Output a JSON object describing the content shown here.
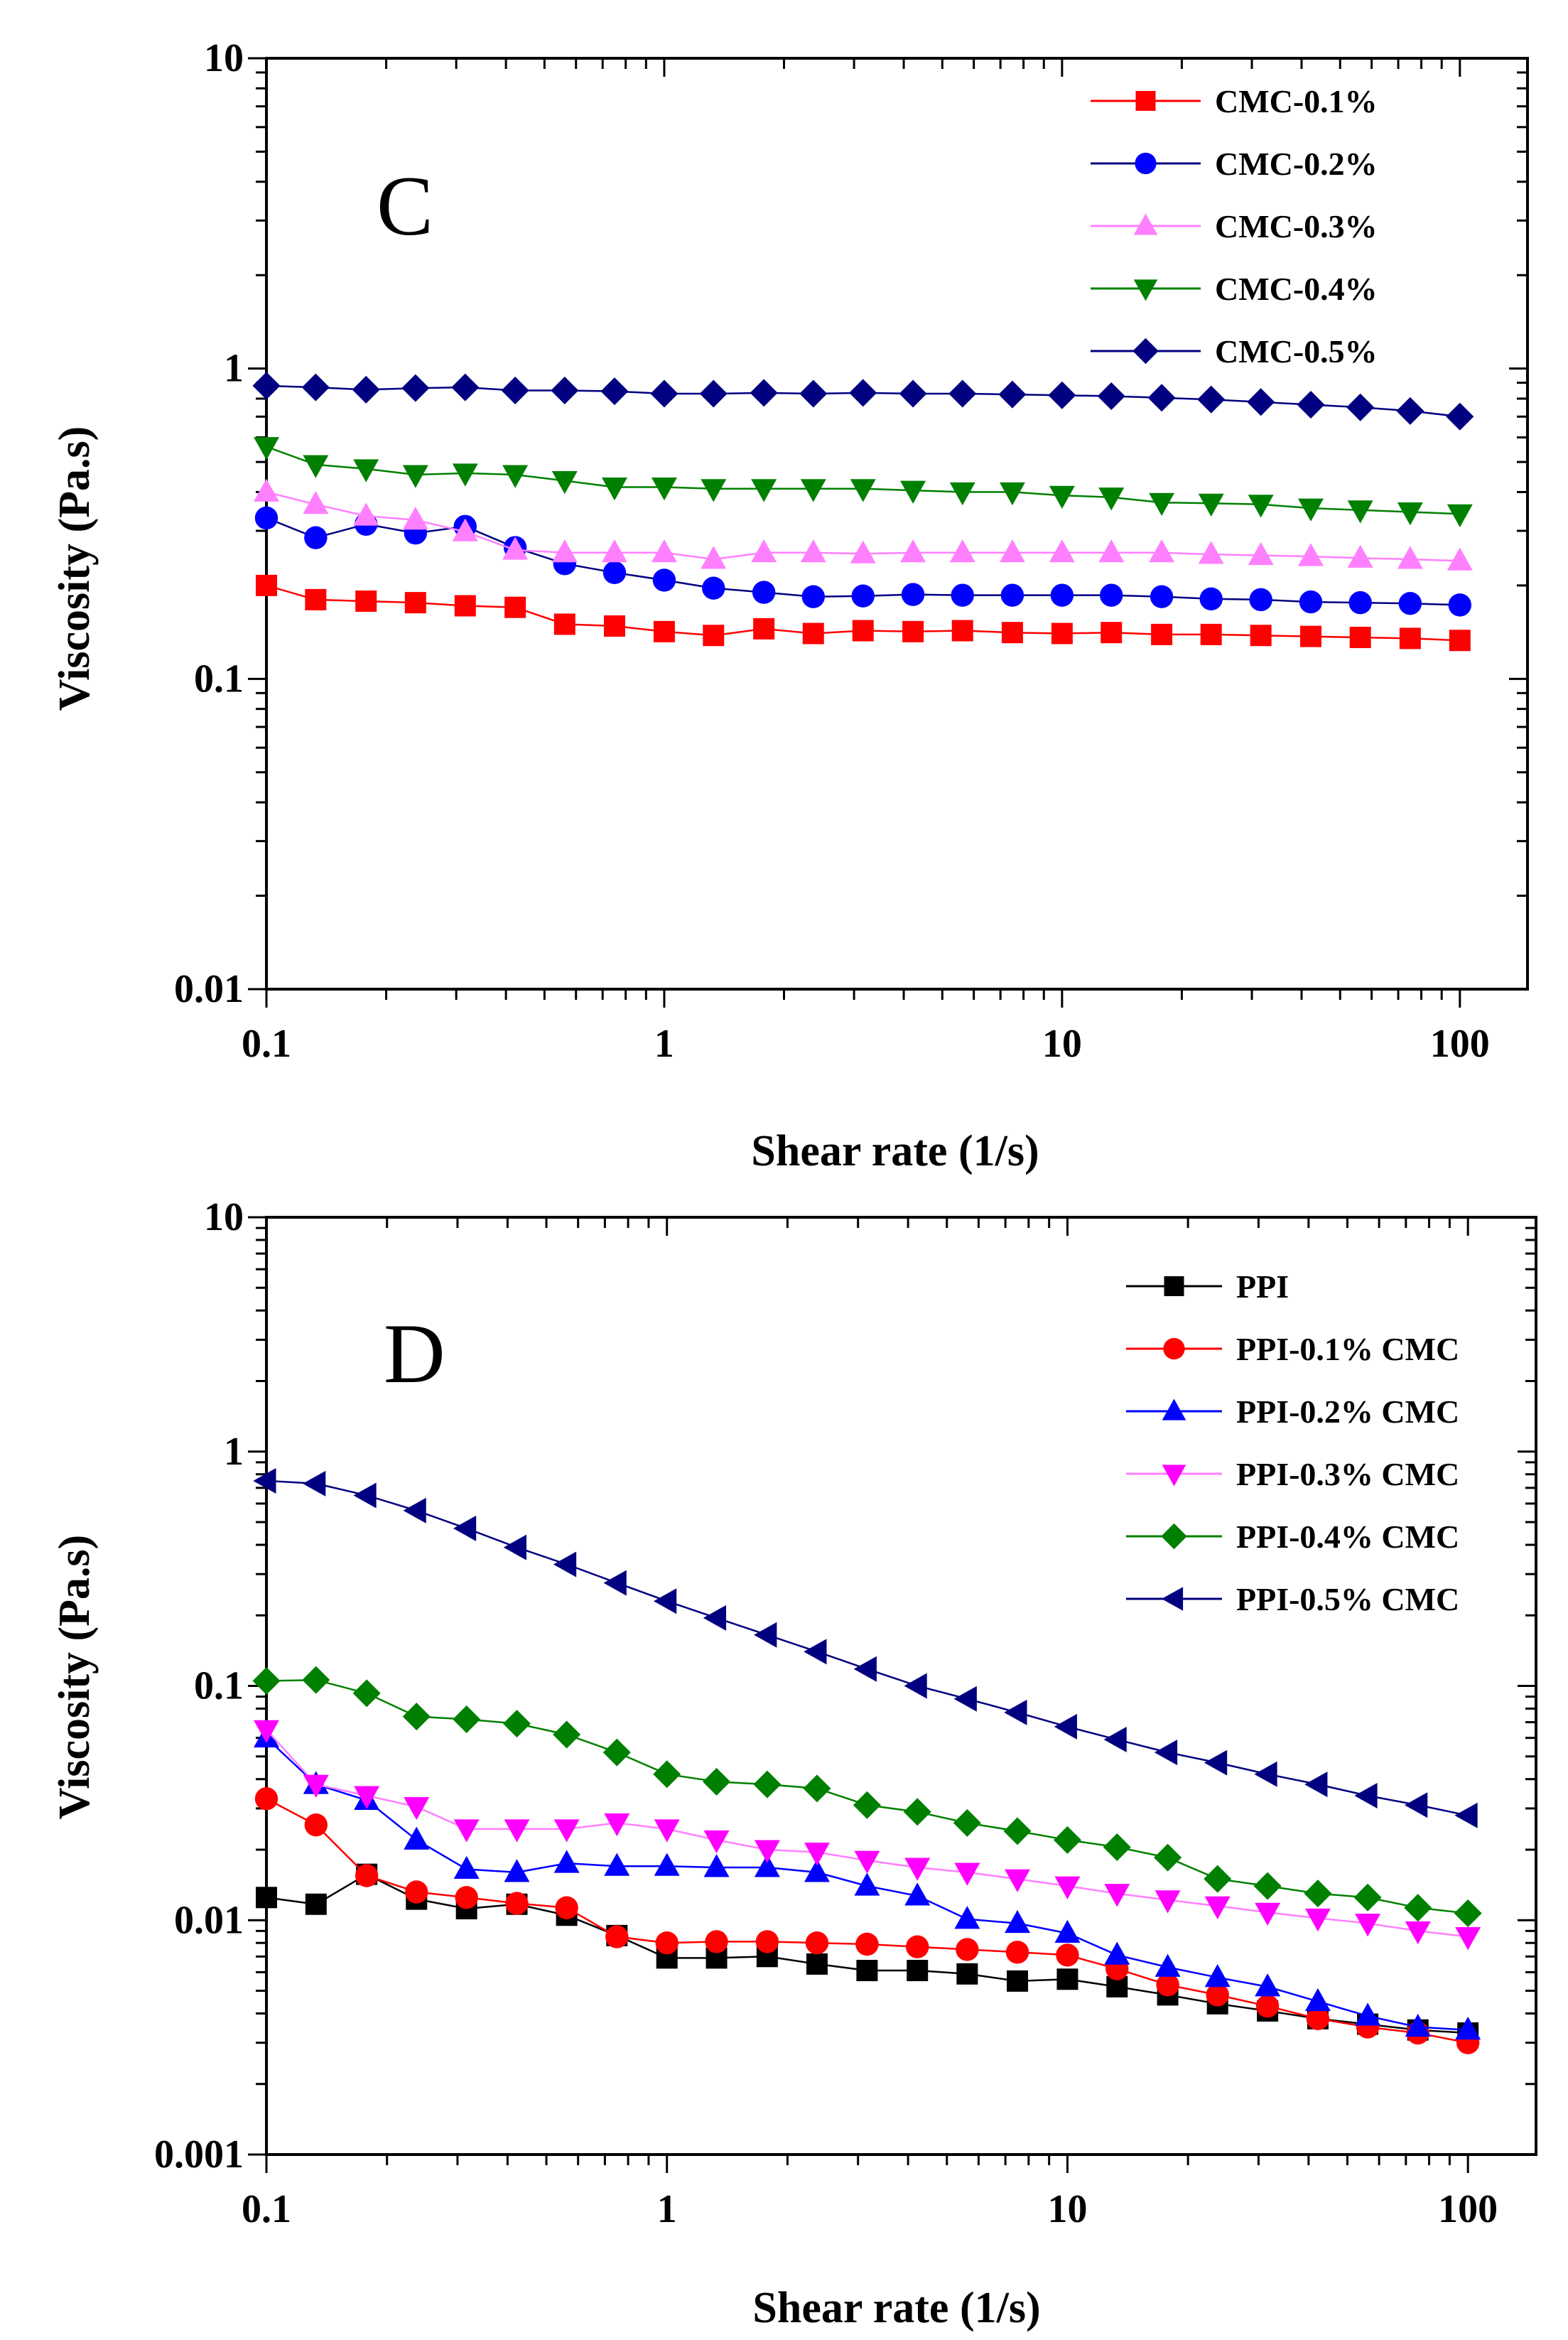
{
  "chart_data": [
    {
      "type": "line",
      "panel_label": "C",
      "xlabel": "Shear rate (1/s)",
      "ylabel": "Viscosity (Pa.s)",
      "xscale": "log",
      "yscale": "log",
      "xlim": [
        0.1,
        100
      ],
      "ylim": [
        0.01,
        10
      ],
      "xticks": [
        "0.1",
        "1",
        "10",
        "100"
      ],
      "yticks": [
        "0.01",
        "0.1",
        "1",
        "10"
      ],
      "legend_position": "top-right",
      "x": [
        0.1,
        0.133,
        0.178,
        0.237,
        0.316,
        0.422,
        0.562,
        0.75,
        1.0,
        1.33,
        1.78,
        2.37,
        3.16,
        4.22,
        5.62,
        7.5,
        10,
        13.3,
        17.8,
        23.7,
        31.6,
        42.2,
        56.2,
        75,
        100
      ],
      "series": [
        {
          "name": "CMC-0.1%",
          "marker": "square",
          "color": "#ff0000",
          "line_color": "#ff0000",
          "values": [
            0.2,
            0.18,
            0.178,
            0.176,
            0.172,
            0.17,
            0.15,
            0.148,
            0.142,
            0.138,
            0.145,
            0.14,
            0.143,
            0.142,
            0.143,
            0.141,
            0.14,
            0.141,
            0.139,
            0.139,
            0.138,
            0.137,
            0.136,
            0.135,
            0.133
          ]
        },
        {
          "name": "CMC-0.2%",
          "marker": "circle",
          "color": "#0000ff",
          "line_color": "#000080",
          "values": [
            0.33,
            0.285,
            0.315,
            0.295,
            0.31,
            0.265,
            0.235,
            0.22,
            0.208,
            0.196,
            0.19,
            0.184,
            0.185,
            0.187,
            0.186,
            0.186,
            0.186,
            0.186,
            0.184,
            0.181,
            0.18,
            0.177,
            0.176,
            0.175,
            0.173
          ]
        },
        {
          "name": "CMC-0.3%",
          "marker": "triangle-up",
          "color": "#ff80ff",
          "line_color": "#ff80ff",
          "values": [
            0.4,
            0.365,
            0.335,
            0.325,
            0.298,
            0.26,
            0.255,
            0.255,
            0.255,
            0.243,
            0.255,
            0.255,
            0.253,
            0.255,
            0.255,
            0.255,
            0.255,
            0.255,
            0.255,
            0.252,
            0.25,
            0.248,
            0.245,
            0.243,
            0.24
          ]
        },
        {
          "name": "CMC-0.4%",
          "marker": "triangle-down",
          "color": "#008000",
          "line_color": "#008000",
          "values": [
            0.56,
            0.49,
            0.475,
            0.455,
            0.46,
            0.455,
            0.435,
            0.415,
            0.415,
            0.41,
            0.41,
            0.41,
            0.41,
            0.405,
            0.4,
            0.4,
            0.39,
            0.385,
            0.37,
            0.368,
            0.365,
            0.355,
            0.35,
            0.345,
            0.34
          ]
        },
        {
          "name": "CMC-0.5%",
          "marker": "diamond",
          "color": "#000080",
          "line_color": "#000080",
          "values": [
            0.88,
            0.87,
            0.855,
            0.865,
            0.87,
            0.85,
            0.85,
            0.845,
            0.83,
            0.83,
            0.835,
            0.83,
            0.835,
            0.83,
            0.83,
            0.825,
            0.82,
            0.815,
            0.805,
            0.795,
            0.78,
            0.765,
            0.75,
            0.73,
            0.7
          ]
        }
      ]
    },
    {
      "type": "line",
      "panel_label": "D",
      "xlabel": "Shear rate (1/s)",
      "ylabel": "Viscosity (Pa.s)",
      "xscale": "log",
      "yscale": "log",
      "xlim": [
        0.1,
        100
      ],
      "ylim": [
        0.001,
        10
      ],
      "xticks": [
        "0.1",
        "1",
        "10",
        "100"
      ],
      "yticks": [
        "0.001",
        "0.01",
        "0.1",
        "1",
        "10"
      ],
      "legend_position": "top-right",
      "x": [
        0.1,
        0.133,
        0.178,
        0.237,
        0.316,
        0.422,
        0.562,
        0.75,
        1.0,
        1.33,
        1.78,
        2.37,
        3.16,
        4.22,
        5.62,
        7.5,
        10,
        13.3,
        17.8,
        23.7,
        31.6,
        42.2,
        56.2,
        75,
        100
      ],
      "series": [
        {
          "name": "PPI",
          "marker": "square",
          "color": "#000000",
          "line_color": "#000000",
          "values": [
            0.0125,
            0.0117,
            0.0157,
            0.0123,
            0.0112,
            0.0117,
            0.0105,
            0.0086,
            0.0069,
            0.0069,
            0.007,
            0.0065,
            0.0061,
            0.0061,
            0.0059,
            0.0055,
            0.0056,
            0.0052,
            0.0048,
            0.0044,
            0.0041,
            0.0038,
            0.0036,
            0.0034,
            0.0033
          ]
        },
        {
          "name": "PPI-0.1% CMC",
          "marker": "circle",
          "color": "#ff0000",
          "line_color": "#ff0000",
          "values": [
            0.033,
            0.0255,
            0.0155,
            0.0132,
            0.0125,
            0.0118,
            0.0113,
            0.0085,
            0.008,
            0.0081,
            0.0081,
            0.008,
            0.0079,
            0.0077,
            0.0075,
            0.0073,
            0.0071,
            0.0062,
            0.0053,
            0.0048,
            0.0043,
            0.0038,
            0.0035,
            0.0033,
            0.003
          ]
        },
        {
          "name": "PPI-0.2% CMC",
          "marker": "triangle-up",
          "color": "#0000ff",
          "line_color": "#0000ff",
          "values": [
            0.06,
            0.038,
            0.0325,
            0.022,
            0.0165,
            0.016,
            0.0175,
            0.017,
            0.017,
            0.0168,
            0.0168,
            0.016,
            0.014,
            0.0127,
            0.0101,
            0.0097,
            0.0088,
            0.0071,
            0.0063,
            0.0057,
            0.0052,
            0.0045,
            0.0039,
            0.0035,
            0.0034
          ]
        },
        {
          "name": "PPI-0.3% CMC",
          "marker": "triangle-down",
          "color": "#ff00ff",
          "line_color": "#ff80ff",
          "values": [
            0.065,
            0.038,
            0.034,
            0.0305,
            0.0245,
            0.0245,
            0.0245,
            0.026,
            0.0245,
            0.022,
            0.02,
            0.0195,
            0.018,
            0.0168,
            0.016,
            0.015,
            0.014,
            0.013,
            0.0122,
            0.0115,
            0.0108,
            0.0102,
            0.0097,
            0.009,
            0.0085
          ]
        },
        {
          "name": "PPI-0.4% CMC",
          "marker": "diamond",
          "color": "#008000",
          "line_color": "#008000",
          "values": [
            0.105,
            0.106,
            0.093,
            0.074,
            0.072,
            0.069,
            0.062,
            0.052,
            0.042,
            0.039,
            0.038,
            0.0365,
            0.031,
            0.029,
            0.026,
            0.024,
            0.022,
            0.0205,
            0.0185,
            0.015,
            0.014,
            0.013,
            0.0125,
            0.0113,
            0.0107
          ]
        },
        {
          "name": "PPI-0.5% CMC",
          "marker": "triangle-left",
          "color": "#000080",
          "line_color": "#000080",
          "values": [
            0.75,
            0.73,
            0.65,
            0.56,
            0.47,
            0.39,
            0.33,
            0.275,
            0.23,
            0.195,
            0.165,
            0.14,
            0.118,
            0.1,
            0.088,
            0.077,
            0.067,
            0.059,
            0.052,
            0.047,
            0.042,
            0.038,
            0.034,
            0.031,
            0.028
          ]
        }
      ]
    }
  ]
}
